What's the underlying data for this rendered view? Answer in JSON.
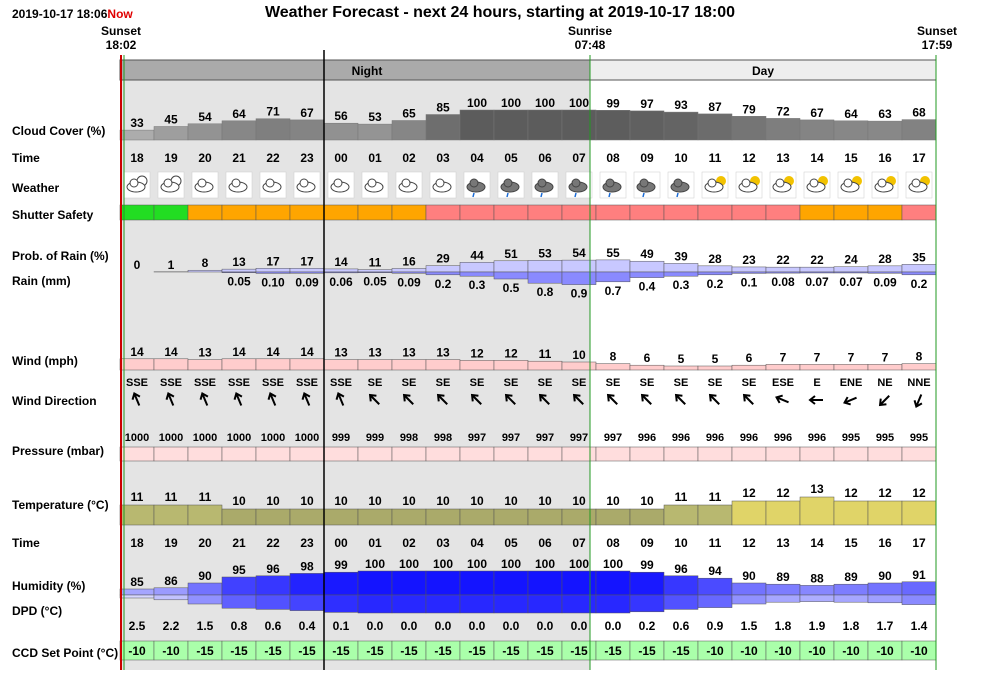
{
  "header": {
    "title": "Weather Forecast - next 24 hours, starting at 2019-10-17 18:00",
    "date": "2019-10-17 18:06",
    "now_label": "Now"
  },
  "sun_events": [
    {
      "label": "Sunset",
      "time": "18:02"
    },
    {
      "label": "Sunrise",
      "time": "07:48"
    },
    {
      "label": "Sunset",
      "time": "17:59"
    }
  ],
  "periods": {
    "night": "Night",
    "day": "Day"
  },
  "row_labels": {
    "cloud": "Cloud Cover (%)",
    "time": "Time",
    "weather": "Weather",
    "shutter": "Shutter Safety",
    "prob": "Prob. of Rain (%)",
    "rain": "Rain (mm)",
    "wind": "Wind (mph)",
    "wind_dir": "Wind Direction",
    "pressure": "Pressure (mbar)",
    "temperature": "Temperature (°C)",
    "time2": "Time",
    "humidity": "Humidity (%)",
    "dpd": "DPD (°C)",
    "ccd": "CCD Set Point (°C)"
  },
  "colors": {
    "shutter": {
      "green": "#22dd22",
      "orange": "#ffa500",
      "red": "#ff7f7f"
    },
    "night_bg": "#e4e4e4",
    "day_bg": "#ffffff",
    "ccd_bg": "#aaffaa"
  },
  "chart_data": {
    "type": "table",
    "hours": [
      "18",
      "19",
      "20",
      "21",
      "22",
      "23",
      "00",
      "01",
      "02",
      "03",
      "04",
      "05",
      "06",
      "07",
      "08",
      "09",
      "10",
      "11",
      "12",
      "13",
      "14",
      "15",
      "16",
      "17"
    ],
    "cloud_cover": [
      33,
      45,
      54,
      64,
      71,
      67,
      56,
      53,
      65,
      85,
      100,
      100,
      100,
      100,
      99,
      97,
      93,
      87,
      79,
      72,
      67,
      64,
      63,
      68
    ],
    "weather_icons": [
      "night-cloud-icon",
      "night-cloud-icon",
      "cloud-icon",
      "cloud-icon",
      "cloud-icon",
      "cloud-icon",
      "cloud-icon",
      "cloud-icon",
      "cloud-icon",
      "cloud-icon",
      "rain-cloud-icon",
      "rain-cloud-icon",
      "rain-cloud-icon",
      "rain-cloud-icon",
      "rain-cloud-icon",
      "rain-cloud-icon",
      "rain-cloud-icon",
      "sun-cloud-icon",
      "sun-cloud-icon",
      "sun-cloud-icon",
      "sun-cloud-icon",
      "sun-cloud-icon",
      "sun-cloud-icon",
      "sun-cloud-icon"
    ],
    "shutter_safety": [
      "green",
      "green",
      "orange",
      "orange",
      "orange",
      "orange",
      "orange",
      "orange",
      "orange",
      "red",
      "red",
      "red",
      "red",
      "red",
      "red",
      "red",
      "red",
      "red",
      "red",
      "red",
      "orange",
      "orange",
      "orange",
      "red"
    ],
    "prob_rain": [
      0,
      1,
      8,
      13,
      17,
      17,
      14,
      11,
      16,
      29,
      44,
      51,
      53,
      54,
      55,
      49,
      39,
      28,
      23,
      22,
      22,
      24,
      28,
      35
    ],
    "rain_mm": [
      "",
      "",
      "",
      "0.05",
      "0.10",
      "0.09",
      "0.06",
      "0.05",
      "0.09",
      "0.2",
      "0.3",
      "0.5",
      "0.8",
      "0.9",
      "0.7",
      "0.4",
      "0.3",
      "0.2",
      "0.1",
      "0.08",
      "0.07",
      "0.07",
      "0.09",
      "0.2"
    ],
    "wind_mph": [
      14,
      14,
      13,
      14,
      14,
      14,
      13,
      13,
      13,
      13,
      12,
      12,
      11,
      10,
      8,
      6,
      5,
      5,
      6,
      7,
      7,
      7,
      7,
      8
    ],
    "wind_dir": [
      "SSE",
      "SSE",
      "SSE",
      "SSE",
      "SSE",
      "SSE",
      "SSE",
      "SE",
      "SE",
      "SE",
      "SE",
      "SE",
      "SE",
      "SE",
      "SE",
      "SE",
      "SE",
      "SE",
      "SE",
      "ESE",
      "E",
      "ENE",
      "NE",
      "NNE"
    ],
    "pressure": [
      1000,
      1000,
      1000,
      1000,
      1000,
      1000,
      999,
      999,
      998,
      998,
      997,
      997,
      997,
      997,
      997,
      996,
      996,
      996,
      996,
      996,
      996,
      995,
      995,
      995
    ],
    "temperature": [
      11,
      11,
      11,
      10,
      10,
      10,
      10,
      10,
      10,
      10,
      10,
      10,
      10,
      10,
      10,
      10,
      11,
      11,
      12,
      12,
      13,
      12,
      12,
      12
    ],
    "humidity": [
      85,
      86,
      90,
      95,
      96,
      98,
      99,
      100,
      100,
      100,
      100,
      100,
      100,
      100,
      100,
      99,
      96,
      94,
      90,
      89,
      88,
      89,
      90,
      91
    ],
    "dpd": [
      "2.5",
      "2.2",
      "1.5",
      "0.8",
      "0.6",
      "0.4",
      "0.1",
      "0.0",
      "0.0",
      "0.0",
      "0.0",
      "0.0",
      "0.0",
      "0.0",
      "0.0",
      "0.2",
      "0.6",
      "0.9",
      "1.5",
      "1.8",
      "1.9",
      "1.8",
      "1.7",
      "1.4"
    ],
    "ccd_set_point": [
      -10,
      -10,
      -15,
      -15,
      -15,
      -15,
      -15,
      -15,
      -15,
      -15,
      -15,
      -15,
      -15,
      -15,
      -15,
      -15,
      -15,
      -10,
      -10,
      -10,
      -10,
      -10,
      -10,
      -10
    ]
  }
}
